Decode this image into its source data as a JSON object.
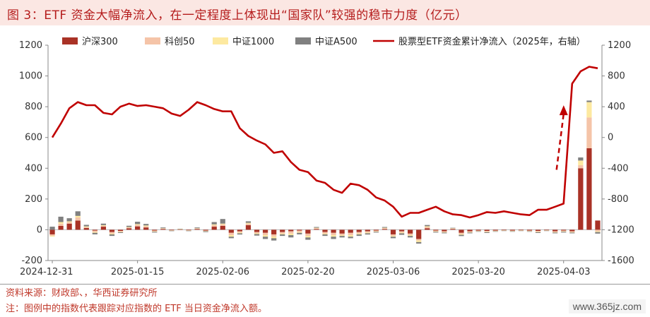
{
  "title": "图 3：ETF 资金大幅净流入，在一定程度上体现出“国家队”较强的稳市力度（亿元）",
  "source": "资料来源：财政部、，华西证券研究所",
  "note": "注：图例中的指数代表跟踪对应指数的 ETF 当日资金净流入额。",
  "watermark": "www.365jz.com",
  "chart_data": {
    "type": "bar",
    "stacked": true,
    "left_axis": {
      "ylim": [
        -200,
        1200
      ],
      "ticks": [
        -200,
        0,
        200,
        400,
        600,
        800,
        1000,
        1200
      ]
    },
    "right_axis": {
      "ylim": [
        -1600,
        1200
      ],
      "ticks": [
        -1600,
        -1200,
        -800,
        -400,
        0,
        400,
        800,
        1200
      ]
    },
    "grid": false,
    "legend": {
      "placement": "top"
    },
    "x_ticks": [
      {
        "index": 0,
        "label": "2024-12-31"
      },
      {
        "index": 10,
        "label": "2025-01-15"
      },
      {
        "index": 20,
        "label": "2025-02-06"
      },
      {
        "index": 30,
        "label": "2025-02-20"
      },
      {
        "index": 40,
        "label": "2025-03-06"
      },
      {
        "index": 50,
        "label": "2025-03-20"
      },
      {
        "index": 60,
        "label": "2025-04-03"
      }
    ],
    "n_points": 65,
    "series": [
      {
        "name": "沪深300",
        "kind": "bar",
        "color": "#a93226",
        "axis": "left",
        "values": [
          -30,
          25,
          40,
          60,
          12,
          -5,
          20,
          -15,
          -8,
          10,
          22,
          15,
          -5,
          5,
          -3,
          2,
          -3,
          5,
          -5,
          20,
          25,
          -20,
          -10,
          30,
          -15,
          -20,
          -30,
          -15,
          -10,
          -5,
          -25,
          5,
          -15,
          -20,
          -25,
          -20,
          -15,
          -10,
          -5,
          5,
          -30,
          -10,
          -25,
          -60,
          10,
          -5,
          -10,
          5,
          -20,
          -10,
          -5,
          -8,
          -5,
          -3,
          -5,
          -3,
          -5,
          -8,
          -3,
          -10,
          -5,
          -10,
          400,
          530,
          60
        ]
      },
      {
        "name": "科创50",
        "kind": "bar",
        "color": "#f5c4a8",
        "axis": "left",
        "values": [
          -10,
          15,
          10,
          20,
          5,
          -10,
          5,
          -10,
          -5,
          5,
          10,
          8,
          -5,
          3,
          -2,
          2,
          -2,
          3,
          -3,
          10,
          10,
          -15,
          -8,
          10,
          -8,
          -15,
          -15,
          -10,
          -15,
          -10,
          -15,
          5,
          -10,
          -15,
          -10,
          -15,
          -10,
          -8,
          -5,
          5,
          -10,
          -8,
          -10,
          -10,
          8,
          -5,
          -5,
          3,
          -8,
          -5,
          -3,
          -5,
          -3,
          -2,
          -3,
          -2,
          -3,
          -5,
          -2,
          -5,
          -5,
          -5,
          20,
          200,
          -10
        ]
      },
      {
        "name": "中证1000",
        "kind": "bar",
        "color": "#fde9a0",
        "axis": "left",
        "values": [
          -5,
          10,
          5,
          10,
          5,
          -5,
          5,
          -5,
          -3,
          3,
          5,
          5,
          -3,
          2,
          -1,
          1,
          -1,
          2,
          -2,
          5,
          5,
          -10,
          -5,
          5,
          -5,
          -10,
          -10,
          -5,
          -10,
          -5,
          -10,
          3,
          -5,
          -10,
          -5,
          -10,
          -5,
          -5,
          -3,
          3,
          -5,
          -5,
          -5,
          -10,
          5,
          -3,
          -3,
          2,
          -5,
          -3,
          -2,
          -3,
          -2,
          -1,
          -2,
          -1,
          -2,
          -3,
          -1,
          -3,
          -3,
          -3,
          30,
          100,
          -5
        ]
      },
      {
        "name": "中证A500",
        "kind": "bar",
        "color": "#808080",
        "axis": "left",
        "values": [
          20,
          35,
          20,
          30,
          10,
          -10,
          10,
          -10,
          -5,
          8,
          15,
          10,
          -5,
          5,
          -3,
          2,
          -3,
          5,
          -5,
          15,
          30,
          -10,
          -8,
          10,
          -10,
          -15,
          -15,
          -10,
          -15,
          -10,
          -15,
          5,
          -10,
          -15,
          -10,
          -10,
          -10,
          -8,
          -5,
          5,
          -10,
          -10,
          -10,
          -10,
          8,
          -5,
          -5,
          3,
          -8,
          -5,
          -3,
          -5,
          -3,
          -2,
          -3,
          -2,
          -3,
          -5,
          -2,
          -5,
          -5,
          -5,
          20,
          10,
          -10
        ]
      },
      {
        "name": "股票型ETF资金累计净流入（2025年，右轴）",
        "kind": "line",
        "color": "#c00000",
        "axis": "right",
        "values": [
          0,
          180,
          380,
          460,
          420,
          420,
          320,
          300,
          400,
          440,
          410,
          420,
          400,
          380,
          310,
          280,
          360,
          460,
          420,
          370,
          340,
          340,
          120,
          20,
          -40,
          -90,
          -200,
          -180,
          -320,
          -420,
          -450,
          -560,
          -590,
          -680,
          -720,
          -600,
          -620,
          -680,
          -780,
          -820,
          -900,
          -1030,
          -980,
          -980,
          -940,
          -900,
          -960,
          -1000,
          -1010,
          -1040,
          -1010,
          -970,
          -980,
          -960,
          -980,
          -1000,
          -1010,
          -940,
          -940,
          -900,
          -860,
          700,
          860,
          920,
          900
        ]
      }
    ],
    "annotation": {
      "type": "dashed-arrow",
      "color": "#c00000",
      "from_index": 60,
      "from_value_left": 390,
      "to_index": 61,
      "to_value_left": 800
    }
  }
}
